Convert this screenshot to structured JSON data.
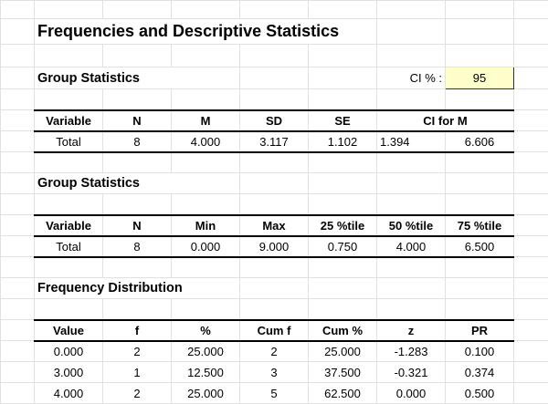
{
  "title": "Frequencies and Descriptive Statistics",
  "group_stats_1": {
    "heading": "Group Statistics",
    "ci_label": "CI % :",
    "ci_value": "95",
    "headers": [
      "Variable",
      "N",
      "M",
      "SD",
      "SE",
      "CI for M"
    ],
    "row": [
      "Total",
      "8",
      "4.000",
      "3.117",
      "1.102",
      "1.394",
      "6.606"
    ]
  },
  "group_stats_2": {
    "heading": "Group Statistics",
    "headers": [
      "Variable",
      "N",
      "Min",
      "Max",
      "25 %tile",
      "50 %tile",
      "75 %tile"
    ],
    "row": [
      "Total",
      "8",
      "0.000",
      "9.000",
      "0.750",
      "4.000",
      "6.500"
    ]
  },
  "frequency_distribution": {
    "heading": "Frequency Distribution",
    "headers": [
      "Value",
      "f",
      "%",
      "Cum f",
      "Cum %",
      "z",
      "PR"
    ],
    "rows": [
      [
        "0.000",
        "2",
        "25.000",
        "2",
        "25.000",
        "-1.283",
        "0.100"
      ],
      [
        "3.000",
        "1",
        "12.500",
        "3",
        "37.500",
        "-0.321",
        "0.374"
      ],
      [
        "4.000",
        "2",
        "25.000",
        "5",
        "62.500",
        "0.000",
        "0.500"
      ]
    ]
  },
  "colors": {
    "ci_input_fill": "#ffffcc",
    "gridline": "#e1e1e1"
  }
}
